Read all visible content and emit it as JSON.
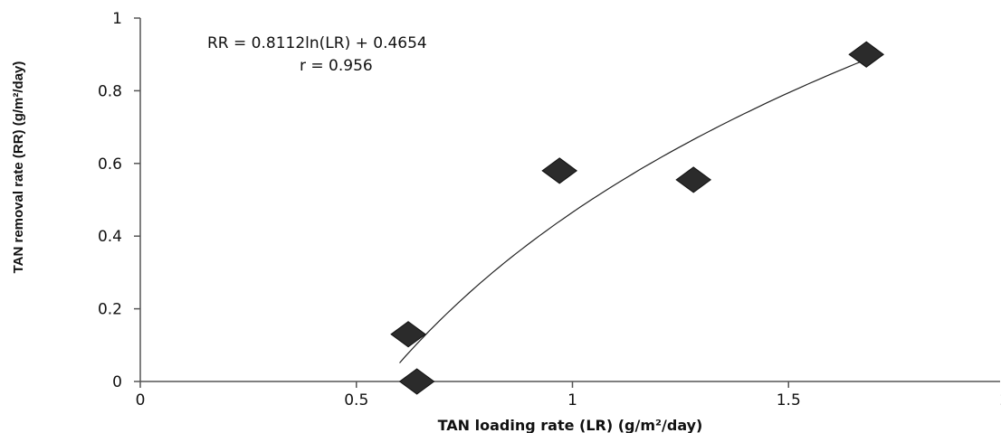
{
  "chart_data": {
    "type": "scatter",
    "title": "",
    "xlabel": "TAN loading rate (LR) (g/m²/day)",
    "ylabel": "TAN removal rate (RR) (g/m²/day)",
    "xlim": [
      0,
      2
    ],
    "ylim": [
      0,
      1
    ],
    "xticks": [
      "0",
      "0.5",
      "1",
      "1.5",
      "2"
    ],
    "yticks": [
      "0",
      "0.2",
      "0.4",
      "0.6",
      "0.8",
      "1"
    ],
    "grid": false,
    "legend": "none",
    "marker": "diamond",
    "marker_color": "#2b2b2b",
    "series": [
      {
        "x": [
          0.62,
          0.64,
          0.97,
          1.28,
          1.68
        ],
        "y": [
          0.13,
          0.0,
          0.58,
          0.555,
          0.9
        ]
      }
    ],
    "trendline": {
      "type": "log",
      "a": 0.8112,
      "b": 0.4654,
      "x_range": [
        0.6,
        1.68
      ]
    },
    "annotations": {
      "equation": "RR = 0.8112ln(LR) + 0.4654",
      "r_value": "r = 0.956"
    }
  }
}
